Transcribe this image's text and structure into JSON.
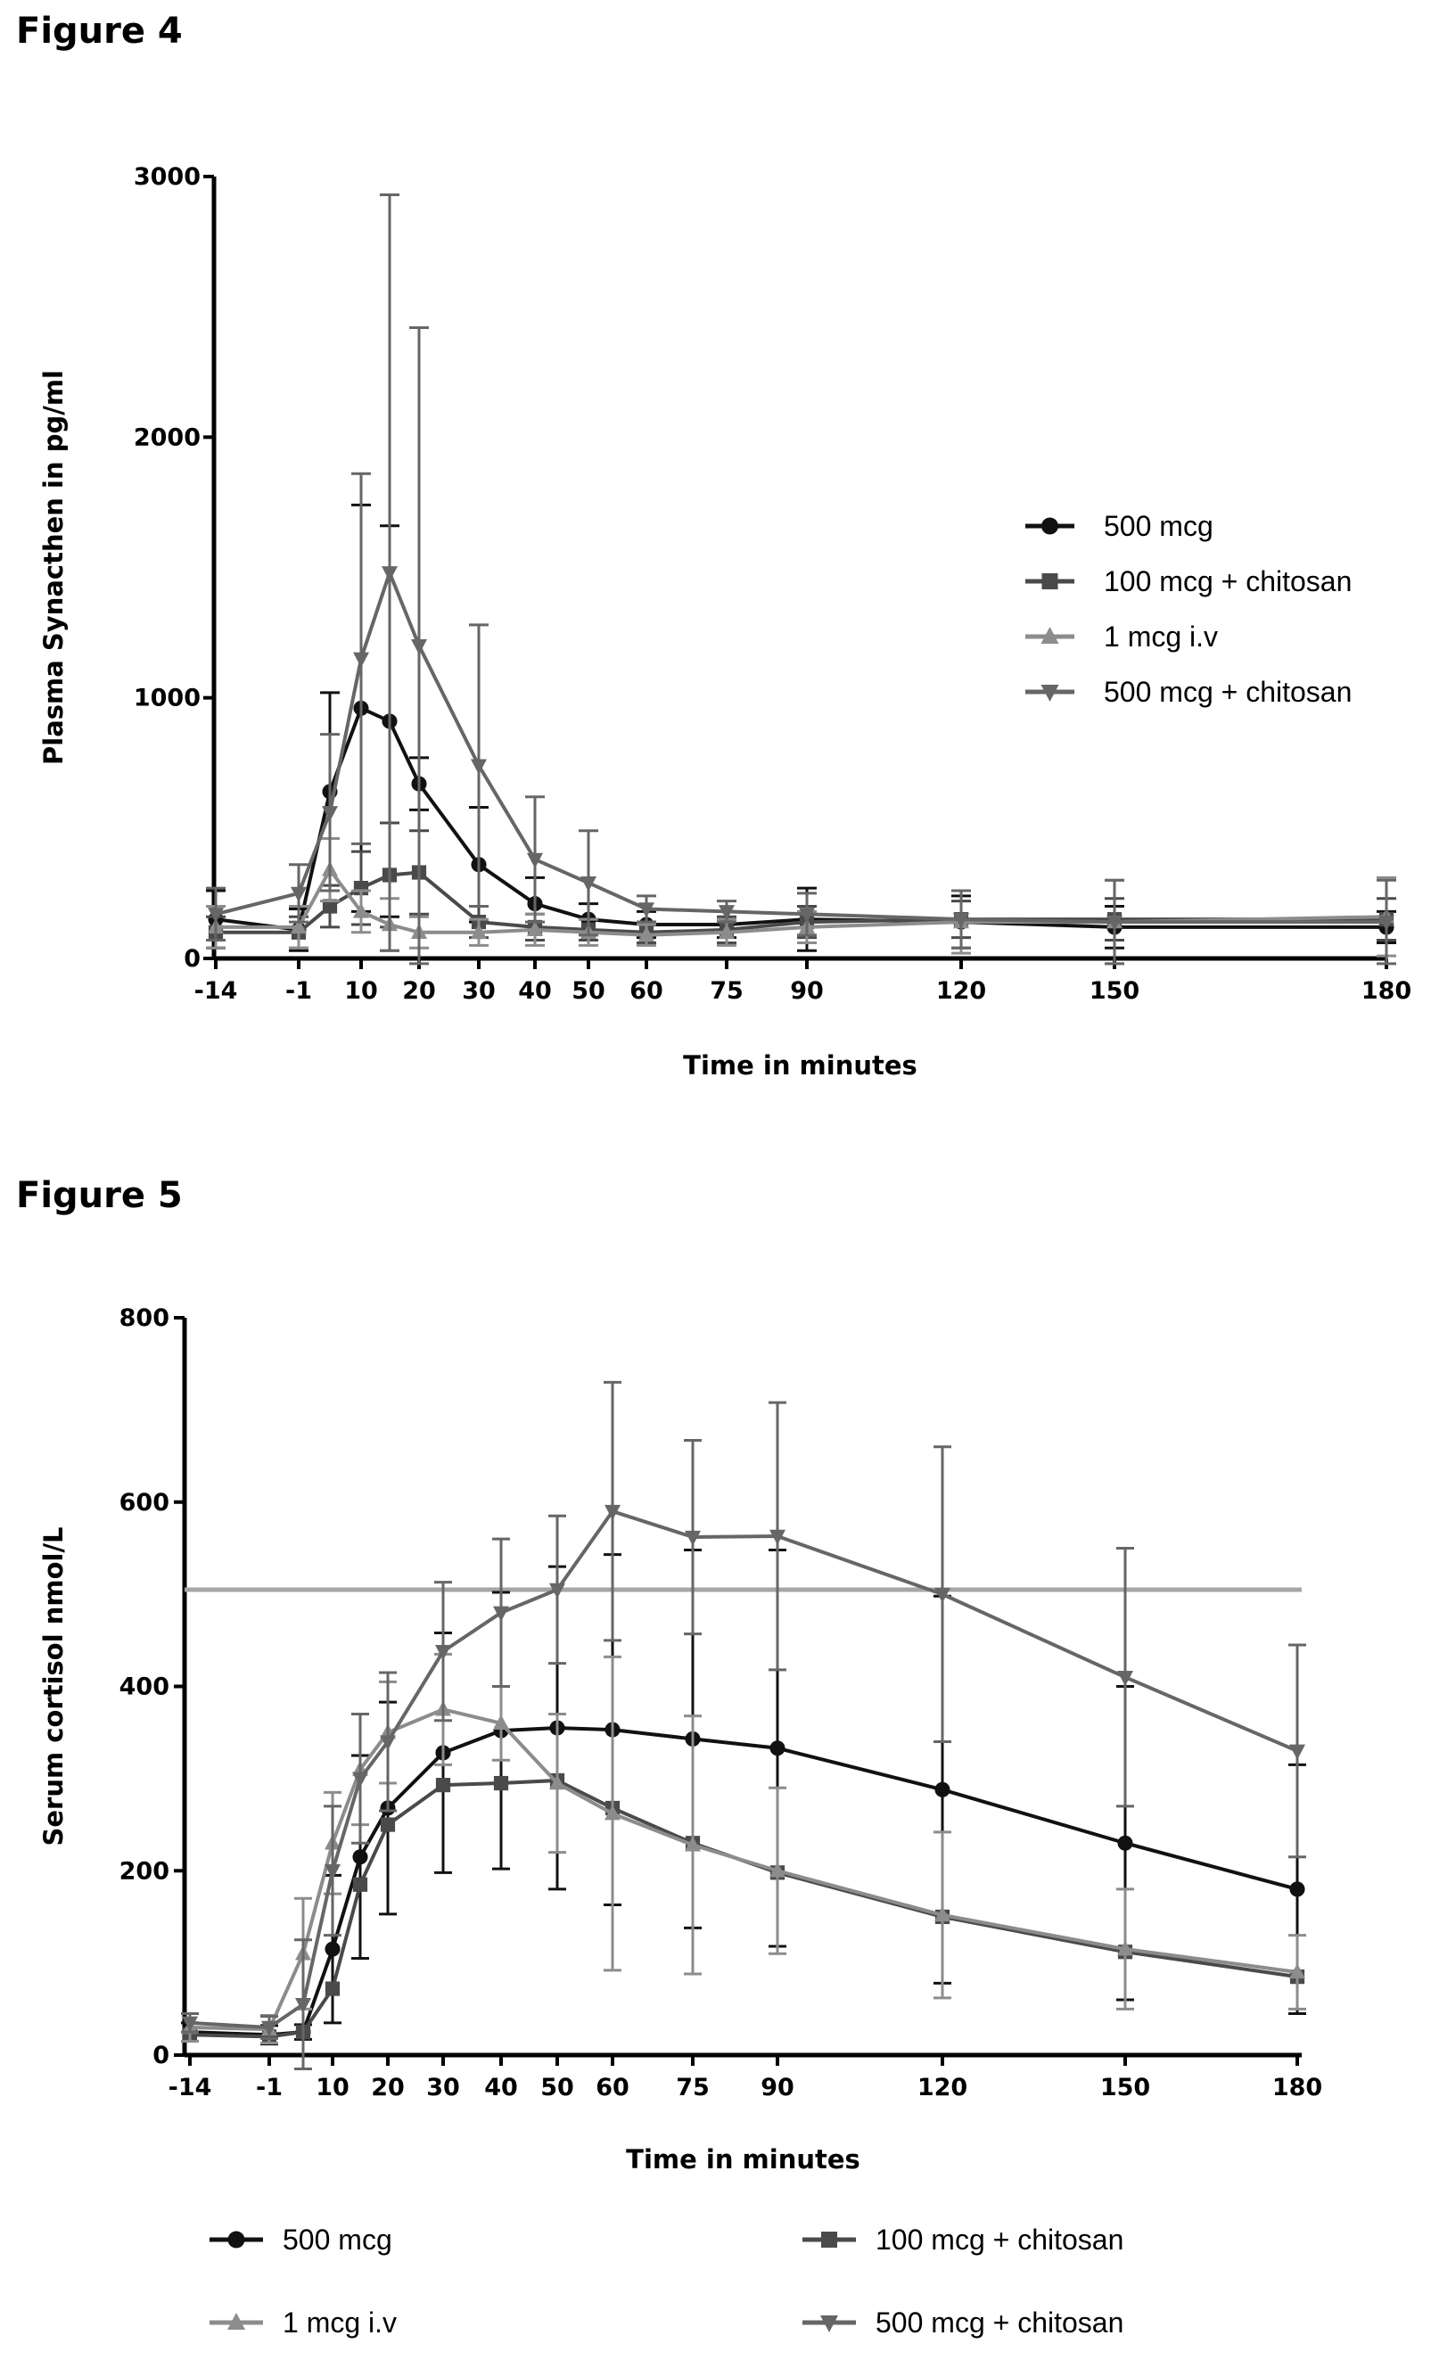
{
  "figures": [
    {
      "title": "Figure 4"
    },
    {
      "title": "Figure 5"
    }
  ],
  "chart_data": [
    {
      "type": "line",
      "xlabel": "Time in minutes",
      "ylabel": "Plasma Synacthen in pg/ml",
      "categories": [
        "-14",
        "-1",
        "5",
        "10",
        "15",
        "20",
        "30",
        "40",
        "50",
        "60",
        "75",
        "90",
        "120",
        "150",
        "180"
      ],
      "x_tick_labels": [
        "-14",
        "-1",
        "10",
        "20",
        "30",
        "40",
        "50",
        "60",
        "75",
        "90",
        "120",
        "150",
        "180"
      ],
      "y_ticks": [
        0,
        1000,
        2000,
        3000
      ],
      "ylim": [
        0,
        3000
      ],
      "legend_position": "right",
      "series": [
        {
          "name": "500 mcg",
          "color": "#111111",
          "marker": "circle",
          "values": [
            150,
            110,
            640,
            960,
            910,
            670,
            360,
            210,
            150,
            130,
            130,
            150,
            140,
            120,
            120
          ],
          "errors": [
            110,
            80,
            380,
            780,
            750,
            100,
            220,
            100,
            60,
            50,
            50,
            120,
            100,
            80,
            60
          ]
        },
        {
          "name": "100 mcg + chitosan",
          "color": "#4a4a4a",
          "marker": "square",
          "values": [
            100,
            100,
            200,
            270,
            320,
            330,
            140,
            120,
            110,
            100,
            110,
            140,
            150,
            150,
            150
          ],
          "errors": [
            60,
            60,
            80,
            140,
            200,
            160,
            60,
            50,
            40,
            40,
            50,
            60,
            70,
            80,
            80
          ]
        },
        {
          "name": "1 mcg i.v",
          "color": "#8c8c8c",
          "marker": "triangle-up",
          "values": [
            120,
            120,
            340,
            180,
            130,
            100,
            100,
            110,
            100,
            90,
            100,
            120,
            140,
            140,
            160
          ],
          "errors": [
            80,
            80,
            120,
            80,
            100,
            60,
            50,
            60,
            50,
            40,
            50,
            60,
            120,
            160,
            150
          ]
        },
        {
          "name": "500 mcg + chitosan",
          "color": "#666666",
          "marker": "triangle-down",
          "values": [
            170,
            250,
            560,
            1150,
            1480,
            1200,
            740,
            380,
            290,
            190,
            180,
            170,
            150,
            140,
            140
          ],
          "errors": [
            100,
            110,
            300,
            710,
            1450,
            1220,
            540,
            240,
            200,
            50,
            40,
            80,
            110,
            160,
            160
          ]
        }
      ]
    },
    {
      "type": "line",
      "xlabel": "Time in minutes",
      "ylabel": "Serum cortisol nmol/L",
      "categories": [
        "-14",
        "-1",
        "5",
        "10",
        "15",
        "20",
        "30",
        "40",
        "50",
        "60",
        "75",
        "90",
        "120",
        "150",
        "180"
      ],
      "x_tick_labels": [
        "-14",
        "-1",
        "10",
        "20",
        "30",
        "40",
        "50",
        "60",
        "75",
        "90",
        "120",
        "150",
        "180"
      ],
      "y_ticks": [
        0,
        200,
        400,
        600,
        800
      ],
      "ylim": [
        0,
        800
      ],
      "reference_line": 505,
      "legend_position": "bottom",
      "series": [
        {
          "name": "500 mcg",
          "color": "#111111",
          "marker": "circle",
          "values": [
            25,
            22,
            25,
            115,
            215,
            268,
            328,
            352,
            355,
            353,
            343,
            333,
            288,
            230,
            180
          ],
          "errors": [
            10,
            10,
            8,
            80,
            110,
            115,
            130,
            150,
            175,
            190,
            205,
            215,
            210,
            170,
            135
          ]
        },
        {
          "name": "100 mcg + chitosan",
          "color": "#4a4a4a",
          "marker": "square",
          "values": [
            22,
            20,
            25,
            72,
            185,
            250,
            293,
            295,
            298,
            268,
            230,
            198,
            150,
            112,
            85
          ]
        },
        {
          "name": "1 mcg i.v",
          "color": "#8c8c8c",
          "marker": "triangle-up",
          "values": [
            30,
            28,
            110,
            230,
            310,
            350,
            375,
            360,
            295,
            262,
            228,
            200,
            152,
            115,
            90
          ],
          "errors": [
            15,
            15,
            60,
            55,
            60,
            55,
            60,
            40,
            75,
            170,
            140,
            90,
            90,
            65,
            40
          ]
        },
        {
          "name": "500 mcg + chitosan",
          "color": "#666666",
          "marker": "triangle-down",
          "values": [
            35,
            30,
            55,
            200,
            300,
            340,
            438,
            480,
            505,
            590,
            562,
            563,
            500,
            410,
            330
          ],
          "errors": [
            10,
            12,
            70,
            70,
            70,
            75,
            75,
            80,
            80,
            140,
            105,
            145,
            160,
            140,
            115
          ]
        }
      ]
    }
  ]
}
